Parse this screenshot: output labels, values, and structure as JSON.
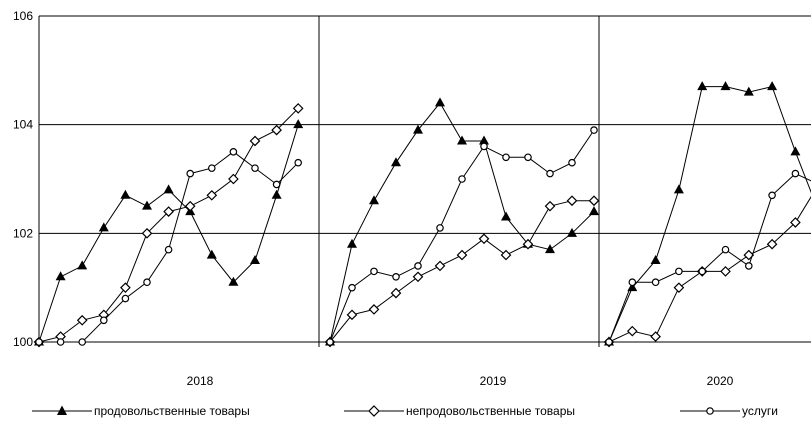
{
  "chart_data": {
    "type": "line",
    "ylim": [
      100,
      106
    ],
    "yticks": [
      "100",
      "102",
      "104",
      "106"
    ],
    "grid": true,
    "legend_position": "bottom",
    "years": [
      "2018",
      "2019",
      "2020"
    ],
    "series": [
      {
        "name": "продовольственные товары",
        "marker": "triangle",
        "segments": [
          [
            100.0,
            101.2,
            101.4,
            102.1,
            102.7,
            102.5,
            102.8,
            102.4,
            101.6,
            101.1,
            101.5,
            102.7,
            104.0
          ],
          [
            100.0,
            101.8,
            102.6,
            103.3,
            103.9,
            104.4,
            103.7,
            103.7,
            102.3,
            101.8,
            101.7,
            102.0,
            102.4
          ],
          [
            100.0,
            101.0,
            101.5,
            102.8,
            104.7,
            104.7,
            104.6,
            104.7,
            103.5,
            102.4
          ]
        ]
      },
      {
        "name": "непродовольственные товары",
        "marker": "diamond",
        "segments": [
          [
            100.0,
            100.1,
            100.4,
            100.5,
            101.0,
            102.0,
            102.4,
            102.5,
            102.7,
            103.0,
            103.7,
            103.9,
            104.3
          ],
          [
            100.0,
            100.5,
            100.6,
            100.9,
            101.2,
            101.4,
            101.6,
            101.9,
            101.6,
            101.8,
            102.5,
            102.6,
            102.6
          ],
          [
            100.0,
            100.2,
            100.1,
            101.0,
            101.3,
            101.3,
            101.6,
            101.8,
            102.2,
            102.9
          ]
        ]
      },
      {
        "name": "услуги",
        "marker": "circle",
        "segments": [
          [
            100.0,
            100.0,
            100.0,
            100.4,
            100.8,
            101.1,
            101.7,
            103.1,
            103.2,
            103.5,
            103.2,
            102.9,
            103.3
          ],
          [
            100.0,
            101.0,
            101.3,
            101.2,
            101.4,
            102.1,
            103.0,
            103.6,
            103.4,
            103.4,
            103.1,
            103.3,
            103.9
          ],
          [
            100.0,
            101.1,
            101.1,
            101.3,
            101.3,
            101.7,
            101.4,
            102.7,
            103.1,
            102.9
          ]
        ]
      }
    ]
  }
}
